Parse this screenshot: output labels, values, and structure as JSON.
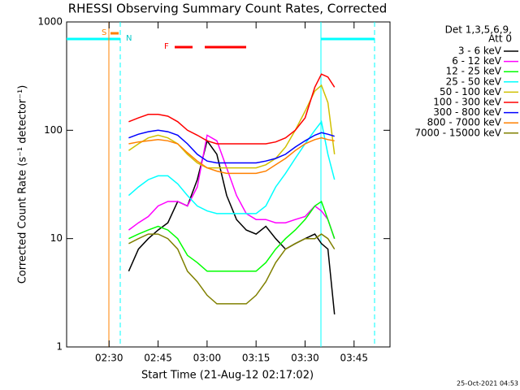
{
  "chart_data": {
    "type": "line",
    "title": "RHESSI Observing Summary Count Rates, Corrected",
    "y_label": "Corrected Count Rate (s⁻¹ detector⁻¹)",
    "x_label": "Start Time (21-Aug-12 02:17:02)",
    "timestamp": "25-Oct-2021 04:53",
    "legend_header": [
      "Det 1,3,5,6,9,",
      "Att 0"
    ],
    "annotations": [
      "S",
      "N",
      "F"
    ],
    "log_y": true,
    "ylim": [
      1,
      1000
    ],
    "yticks": [
      1,
      10,
      100,
      1000
    ],
    "xlim": [
      "02:17",
      "03:56"
    ],
    "xticks": [
      "02:30",
      "02:45",
      "03:00",
      "03:15",
      "03:30",
      "03:45"
    ],
    "x": [
      "02:36",
      "02:39",
      "02:42",
      "02:45",
      "02:48",
      "02:51",
      "02:54",
      "02:57",
      "03:00",
      "03:03",
      "03:06",
      "03:09",
      "03:12",
      "03:15",
      "03:18",
      "03:21",
      "03:24",
      "03:27",
      "03:30",
      "03:33",
      "03:35",
      "03:37",
      "03:39"
    ],
    "series": [
      {
        "name": "3 - 6 keV",
        "color": "#000000",
        "values": [
          5,
          8,
          10,
          12,
          14,
          22,
          20,
          35,
          80,
          60,
          25,
          15,
          12,
          11,
          13,
          10,
          8,
          9,
          10,
          11,
          9,
          8,
          2
        ]
      },
      {
        "name": "6 - 12 keV",
        "color": "#ff00ff",
        "values": [
          12,
          14,
          16,
          20,
          22,
          22,
          20,
          30,
          90,
          80,
          45,
          25,
          17,
          15,
          15,
          14,
          14,
          15,
          16,
          20,
          18,
          15,
          10
        ]
      },
      {
        "name": "12 - 25 keV",
        "color": "#00ff00",
        "values": [
          10,
          11,
          12,
          13,
          12,
          10,
          7,
          6,
          5,
          5,
          5,
          5,
          5,
          5,
          6,
          8,
          10,
          12,
          15,
          20,
          22,
          15,
          10
        ]
      },
      {
        "name": "25 - 50 keV",
        "color": "#00ffff",
        "values": [
          25,
          30,
          35,
          38,
          38,
          32,
          25,
          20,
          18,
          17,
          17,
          17,
          17,
          17,
          20,
          30,
          40,
          55,
          75,
          100,
          120,
          60,
          35
        ]
      },
      {
        "name": "50 - 100 keV",
        "color": "#d0c000",
        "values": [
          65,
          75,
          85,
          90,
          85,
          75,
          60,
          50,
          45,
          45,
          45,
          45,
          45,
          45,
          48,
          55,
          70,
          100,
          150,
          230,
          260,
          180,
          60
        ]
      },
      {
        "name": "100 - 300 keV",
        "color": "#ff0000",
        "values": [
          120,
          130,
          140,
          140,
          135,
          120,
          100,
          90,
          80,
          75,
          75,
          75,
          75,
          75,
          75,
          78,
          85,
          100,
          130,
          250,
          330,
          310,
          250
        ]
      },
      {
        "name": "300 - 800 keV",
        "color": "#0000ff",
        "values": [
          85,
          92,
          97,
          100,
          97,
          90,
          75,
          60,
          52,
          50,
          50,
          50,
          50,
          50,
          52,
          55,
          60,
          70,
          80,
          90,
          95,
          92,
          88
        ]
      },
      {
        "name": "800 - 7000 keV",
        "color": "#ff8000",
        "values": [
          75,
          78,
          80,
          82,
          80,
          75,
          62,
          52,
          45,
          42,
          40,
          40,
          40,
          40,
          42,
          48,
          55,
          65,
          75,
          82,
          85,
          82,
          80
        ]
      },
      {
        "name": "7000 - 15000 keV",
        "color": "#808000",
        "values": [
          9,
          10,
          11,
          11,
          10,
          8,
          5,
          4,
          3,
          2.5,
          2.5,
          2.5,
          2.5,
          3,
          4,
          6,
          8,
          9,
          10,
          10,
          11,
          10,
          8
        ]
      }
    ]
  }
}
